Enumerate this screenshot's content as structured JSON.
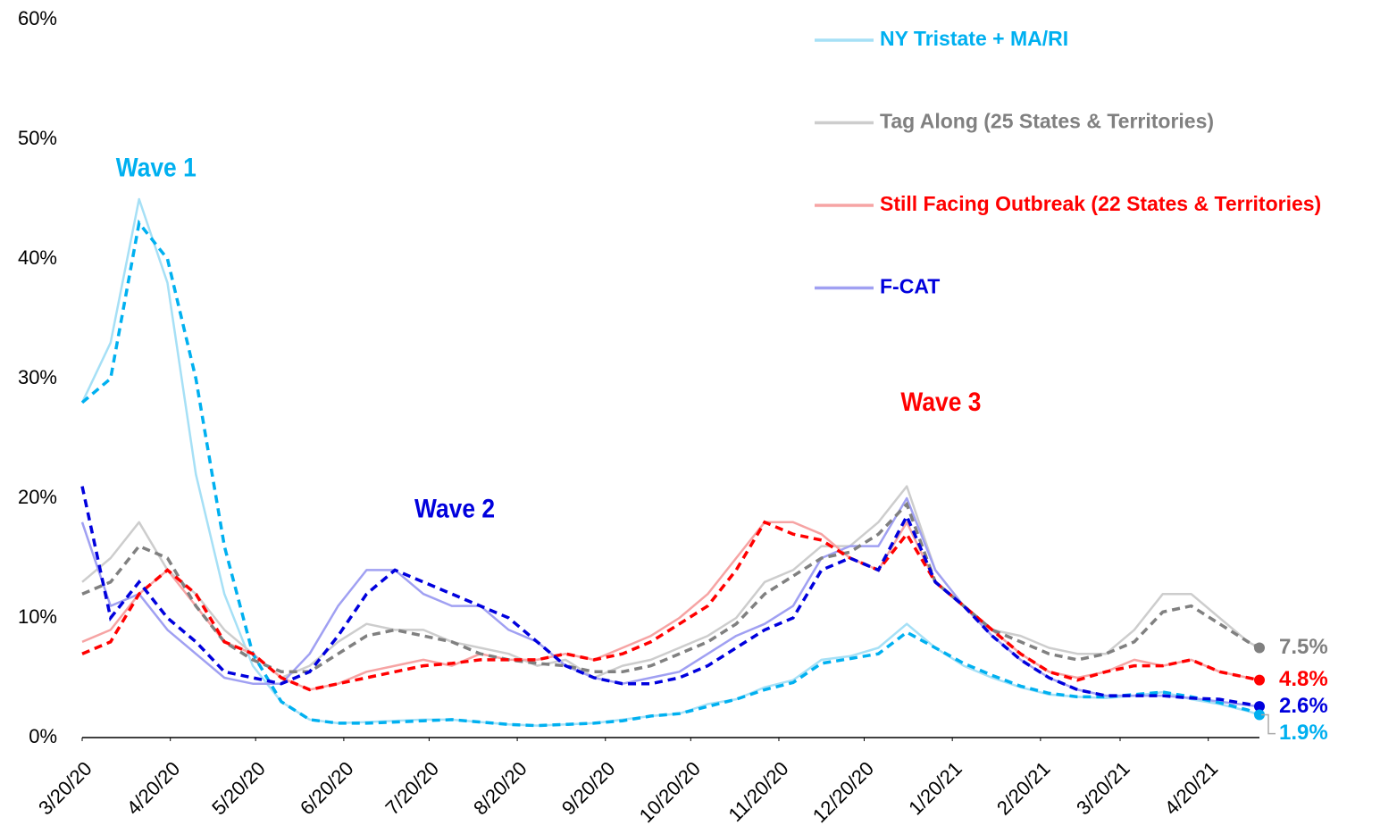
{
  "chart_data": {
    "type": "line",
    "x": [
      "3/20/20",
      "3/30/20",
      "4/9/20",
      "4/19/20",
      "4/29/20",
      "5/9/20",
      "5/19/20",
      "5/29/20",
      "6/8/20",
      "6/18/20",
      "6/28/20",
      "7/8/20",
      "7/18/20",
      "7/28/20",
      "8/7/20",
      "8/17/20",
      "8/27/20",
      "9/6/20",
      "9/16/20",
      "9/26/20",
      "10/6/20",
      "10/16/20",
      "10/26/20",
      "11/5/20",
      "11/15/20",
      "11/25/20",
      "12/5/20",
      "12/15/20",
      "12/25/20",
      "1/4/21",
      "1/14/21",
      "1/24/21",
      "2/3/21",
      "2/13/21",
      "2/23/21",
      "3/5/21",
      "3/15/21",
      "3/25/21",
      "4/4/21",
      "4/14/21",
      "4/24/21",
      "5/4/21",
      "5/8/21"
    ],
    "xlim": [
      "3/20/20",
      "5/8/21"
    ],
    "xticks": [
      "3/20/20",
      "4/20/20",
      "5/20/20",
      "6/20/20",
      "7/20/20",
      "8/20/20",
      "9/20/20",
      "10/20/20",
      "11/20/20",
      "12/20/20",
      "1/20/21",
      "2/20/21",
      "3/20/21",
      "4/20/21"
    ],
    "ylim": [
      0,
      60
    ],
    "yticks": [
      {
        "value": 0,
        "label": "0%"
      },
      {
        "value": 10,
        "label": "10%"
      },
      {
        "value": 20,
        "label": "20%"
      },
      {
        "value": 30,
        "label": "30%"
      },
      {
        "value": 40,
        "label": "40%"
      },
      {
        "value": 50,
        "label": "50%"
      },
      {
        "value": 60,
        "label": "60%"
      }
    ],
    "legend": "top-right",
    "series": [
      {
        "name": "NY Tristate + MA/RI",
        "color": "#00b0f0",
        "raw_color": "#a6e0f6",
        "values": [
          28,
          33,
          45,
          38,
          22,
          12,
          6,
          3,
          1.5,
          1.2,
          1.3,
          1.4,
          1.5,
          1.5,
          1.3,
          1.1,
          1.0,
          1.1,
          1.2,
          1.5,
          1.8,
          2.0,
          2.8,
          3.2,
          4.2,
          4.8,
          6.5,
          6.8,
          7.5,
          9.5,
          7.5,
          6,
          5,
          4.2,
          3.6,
          3.4,
          3.3,
          3.5,
          3.8,
          3.2,
          2.8,
          2.2,
          1.9
        ],
        "trend": [
          28,
          30,
          43,
          40,
          30,
          16,
          7,
          3,
          1.5,
          1.2,
          1.2,
          1.3,
          1.4,
          1.5,
          1.3,
          1.1,
          1.0,
          1.1,
          1.2,
          1.4,
          1.8,
          2.0,
          2.6,
          3.2,
          4.0,
          4.6,
          6.2,
          6.6,
          7.0,
          8.8,
          7.5,
          6.2,
          5.2,
          4.3,
          3.7,
          3.4,
          3.4,
          3.6,
          3.8,
          3.4,
          2.9,
          2.3,
          1.9
        ],
        "end_label": {
          "value": 1.9,
          "label": "1.9%"
        }
      },
      {
        "name": "Tag Along (25 States & Territories)",
        "color": "#808080",
        "raw_color": "#cdcdcd",
        "values": [
          13,
          15,
          18,
          14,
          12,
          9,
          7,
          5,
          6,
          8,
          9.5,
          9,
          9,
          8,
          7.5,
          7,
          6,
          6.5,
          5,
          6,
          6.5,
          7.5,
          8.5,
          10,
          13,
          14,
          16,
          16,
          18,
          21,
          14,
          11,
          9,
          8.5,
          7.5,
          7,
          7,
          9,
          12,
          12,
          10,
          8,
          7.5
        ],
        "trend": [
          12,
          13,
          16,
          15,
          11,
          8,
          6.5,
          5.5,
          5.5,
          7,
          8.5,
          9,
          8.5,
          8,
          7,
          6.5,
          6.2,
          6,
          5.5,
          5.5,
          6,
          7,
          8,
          9.5,
          12,
          13.5,
          15,
          15.5,
          17,
          19.5,
          13,
          11,
          9,
          8,
          7,
          6.5,
          7,
          8,
          10.5,
          11,
          9.5,
          8,
          7.5
        ],
        "end_label": {
          "value": 7.5,
          "label": "7.5%"
        }
      },
      {
        "name": "Still Facing Outbreak (22 States & Territories)",
        "color": "#ff0000",
        "raw_color": "#f6a4a4",
        "values": [
          8,
          9,
          12,
          14,
          11,
          8,
          7,
          5,
          4,
          4.5,
          5.5,
          6,
          6.5,
          6,
          7,
          6.5,
          6.5,
          7,
          6.5,
          7.5,
          8.5,
          10,
          12,
          15,
          18,
          18,
          17,
          15,
          14,
          18,
          13,
          11,
          9,
          7,
          5.5,
          5,
          5.5,
          6.5,
          6,
          6.5,
          5.5,
          5,
          4.8
        ],
        "trend": [
          7,
          8,
          12,
          14,
          12,
          8,
          7,
          5,
          4,
          4.5,
          5,
          5.5,
          6,
          6.2,
          6.5,
          6.5,
          6.5,
          7,
          6.5,
          7,
          8,
          9.5,
          11,
          14,
          18,
          17,
          16.5,
          15,
          14,
          17,
          13,
          11,
          9,
          7,
          5.5,
          4.8,
          5.5,
          6,
          6,
          6.5,
          5.5,
          5,
          4.8
        ],
        "end_label": {
          "value": 4.8,
          "label": "4.8%"
        }
      },
      {
        "name": "F-CAT",
        "color": "#0000dd",
        "raw_color": "#a0a0f2",
        "values": [
          18,
          11,
          12,
          9,
          7,
          5,
          4.5,
          4.5,
          7,
          11,
          14,
          14,
          12,
          11,
          11,
          9,
          8,
          6,
          5,
          4.5,
          5,
          5.5,
          7,
          8.5,
          9.5,
          11,
          15,
          16,
          16,
          20,
          14,
          11,
          8.5,
          6.5,
          5,
          4,
          3.5,
          3.5,
          3.5,
          3.3,
          3,
          2.7,
          2.6
        ],
        "trend": [
          21,
          10,
          13,
          10,
          8,
          5.5,
          5,
          4.5,
          5.5,
          8.5,
          12,
          14,
          13,
          12,
          11,
          10,
          8,
          6,
          5,
          4.5,
          4.5,
          5,
          6,
          7.5,
          9,
          10,
          14,
          15,
          14,
          18.5,
          13,
          11,
          8.5,
          6.5,
          5,
          4,
          3.5,
          3.5,
          3.5,
          3.3,
          3.2,
          2.8,
          2.6
        ],
        "end_label": {
          "value": 2.6,
          "label": "2.6%"
        }
      }
    ],
    "annotations": [
      {
        "text": "Wave 1",
        "x": "4/15/20",
        "y": 47.5,
        "color": "#00b0f0"
      },
      {
        "text": "Wave 2",
        "x": "7/29/20",
        "y": 19,
        "color": "#0000dd"
      },
      {
        "text": "Wave 3",
        "x": "1/16/21",
        "y": 27.9,
        "color": "#ff0000"
      }
    ]
  }
}
